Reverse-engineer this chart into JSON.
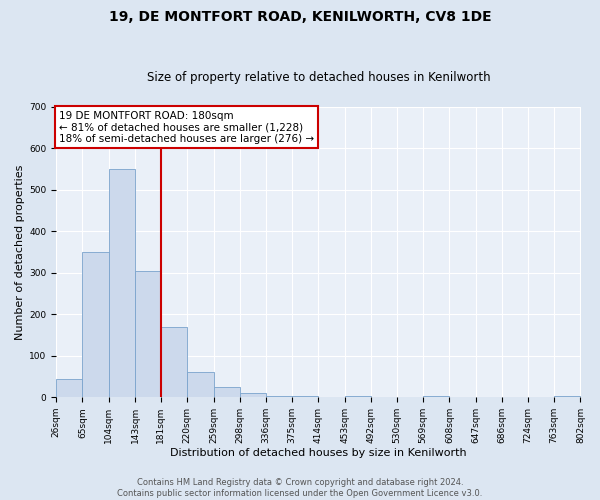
{
  "title": "19, DE MONTFORT ROAD, KENILWORTH, CV8 1DE",
  "subtitle": "Size of property relative to detached houses in Kenilworth",
  "bar_edges": [
    26,
    65,
    104,
    143,
    181,
    220,
    259,
    298,
    336,
    375,
    414,
    453,
    492,
    530,
    569,
    608,
    647,
    686,
    724,
    763,
    802
  ],
  "bar_heights": [
    45,
    350,
    550,
    305,
    168,
    60,
    25,
    10,
    3,
    3,
    0,
    3,
    0,
    0,
    3,
    0,
    0,
    0,
    0,
    3
  ],
  "bar_color": "#ccd9ec",
  "bar_edge_color": "#7aa3cc",
  "property_line_x": 181,
  "property_line_color": "#cc0000",
  "annotation_text_line1": "19 DE MONTFORT ROAD: 180sqm",
  "annotation_text_line2": "← 81% of detached houses are smaller (1,228)",
  "annotation_text_line3": "18% of semi-detached houses are larger (276) →",
  "annotation_box_color": "#cc0000",
  "xlabel": "Distribution of detached houses by size in Kenilworth",
  "ylabel": "Number of detached properties",
  "ylim": [
    0,
    700
  ],
  "yticks": [
    0,
    100,
    200,
    300,
    400,
    500,
    600,
    700
  ],
  "xtick_labels": [
    "26sqm",
    "65sqm",
    "104sqm",
    "143sqm",
    "181sqm",
    "220sqm",
    "259sqm",
    "298sqm",
    "336sqm",
    "375sqm",
    "414sqm",
    "453sqm",
    "492sqm",
    "530sqm",
    "569sqm",
    "608sqm",
    "647sqm",
    "686sqm",
    "724sqm",
    "763sqm",
    "802sqm"
  ],
  "footer_line1": "Contains HM Land Registry data © Crown copyright and database right 2024.",
  "footer_line2": "Contains public sector information licensed under the Open Government Licence v3.0.",
  "background_color": "#dce6f2",
  "plot_background_color": "#eaf0f8",
  "grid_color": "#ffffff",
  "title_fontsize": 10,
  "subtitle_fontsize": 8.5,
  "axis_label_fontsize": 8,
  "tick_fontsize": 6.5,
  "footer_fontsize": 6,
  "annotation_fontsize": 7.5
}
